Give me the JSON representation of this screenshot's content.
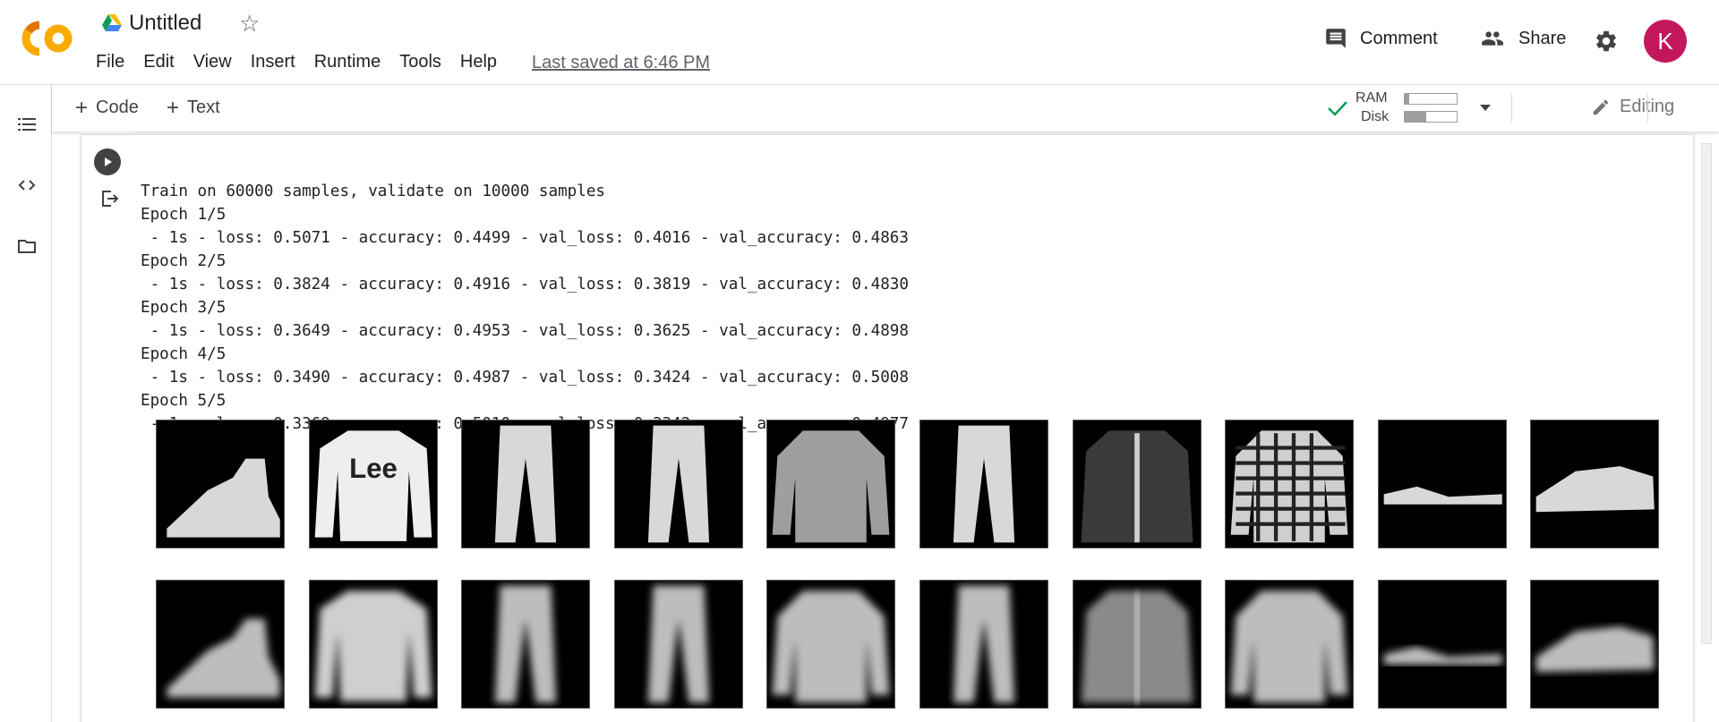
{
  "app": {
    "notebook_title": "Untitled",
    "menu": [
      "File",
      "Edit",
      "View",
      "Insert",
      "Runtime",
      "Tools",
      "Help"
    ],
    "last_saved": "Last saved at 6:46 PM",
    "comment_label": "Comment",
    "share_label": "Share",
    "avatar_letter": "K"
  },
  "toolbar": {
    "add_code_label": "Code",
    "add_text_label": "Text",
    "ram_label": "RAM",
    "disk_label": "Disk",
    "ram_usage_fraction": 0.08,
    "disk_usage_fraction": 0.42,
    "editing_label": "Editing"
  },
  "colors": {
    "logo_orange": "#F9AB00",
    "logo_dark": "#E37400",
    "avatar_bg": "#C2185B",
    "check_green": "#0F9D58"
  },
  "output": {
    "lines": [
      "Train on 60000 samples, validate on 10000 samples",
      "Epoch 1/5",
      " - 1s - loss: 0.5071 - accuracy: 0.4499 - val_loss: 0.4016 - val_accuracy: 0.4863",
      "Epoch 2/5",
      " - 1s - loss: 0.3824 - accuracy: 0.4916 - val_loss: 0.3819 - val_accuracy: 0.4830",
      "Epoch 3/5",
      " - 1s - loss: 0.3649 - accuracy: 0.4953 - val_loss: 0.3625 - val_accuracy: 0.4898",
      "Epoch 4/5",
      " - 1s - loss: 0.3490 - accuracy: 0.4987 - val_loss: 0.3424 - val_accuracy: 0.5008",
      "Epoch 5/5",
      " - 1s - loss: 0.3369 - accuracy: 0.5010 - val_loss: 0.3342 - val_accuracy: 0.4977"
    ]
  },
  "images": {
    "original_row": [
      "ankle-boot",
      "pullover-lee",
      "trouser",
      "trouser",
      "shirt",
      "trouser",
      "coat",
      "plaid-shirt",
      "sandal",
      "sneaker"
    ],
    "reconstructed_row": [
      "ankle-boot-blurry",
      "pullover-blurry",
      "trouser-blurry",
      "trouser-blurry",
      "shirt-blurry",
      "trouser-blurry",
      "coat-blurry",
      "shirt-blurry",
      "sandal-blurry",
      "sneaker-blurry"
    ]
  },
  "icons": {
    "rail": [
      "table-of-contents-icon",
      "code-snippets-icon",
      "files-icon"
    ]
  }
}
